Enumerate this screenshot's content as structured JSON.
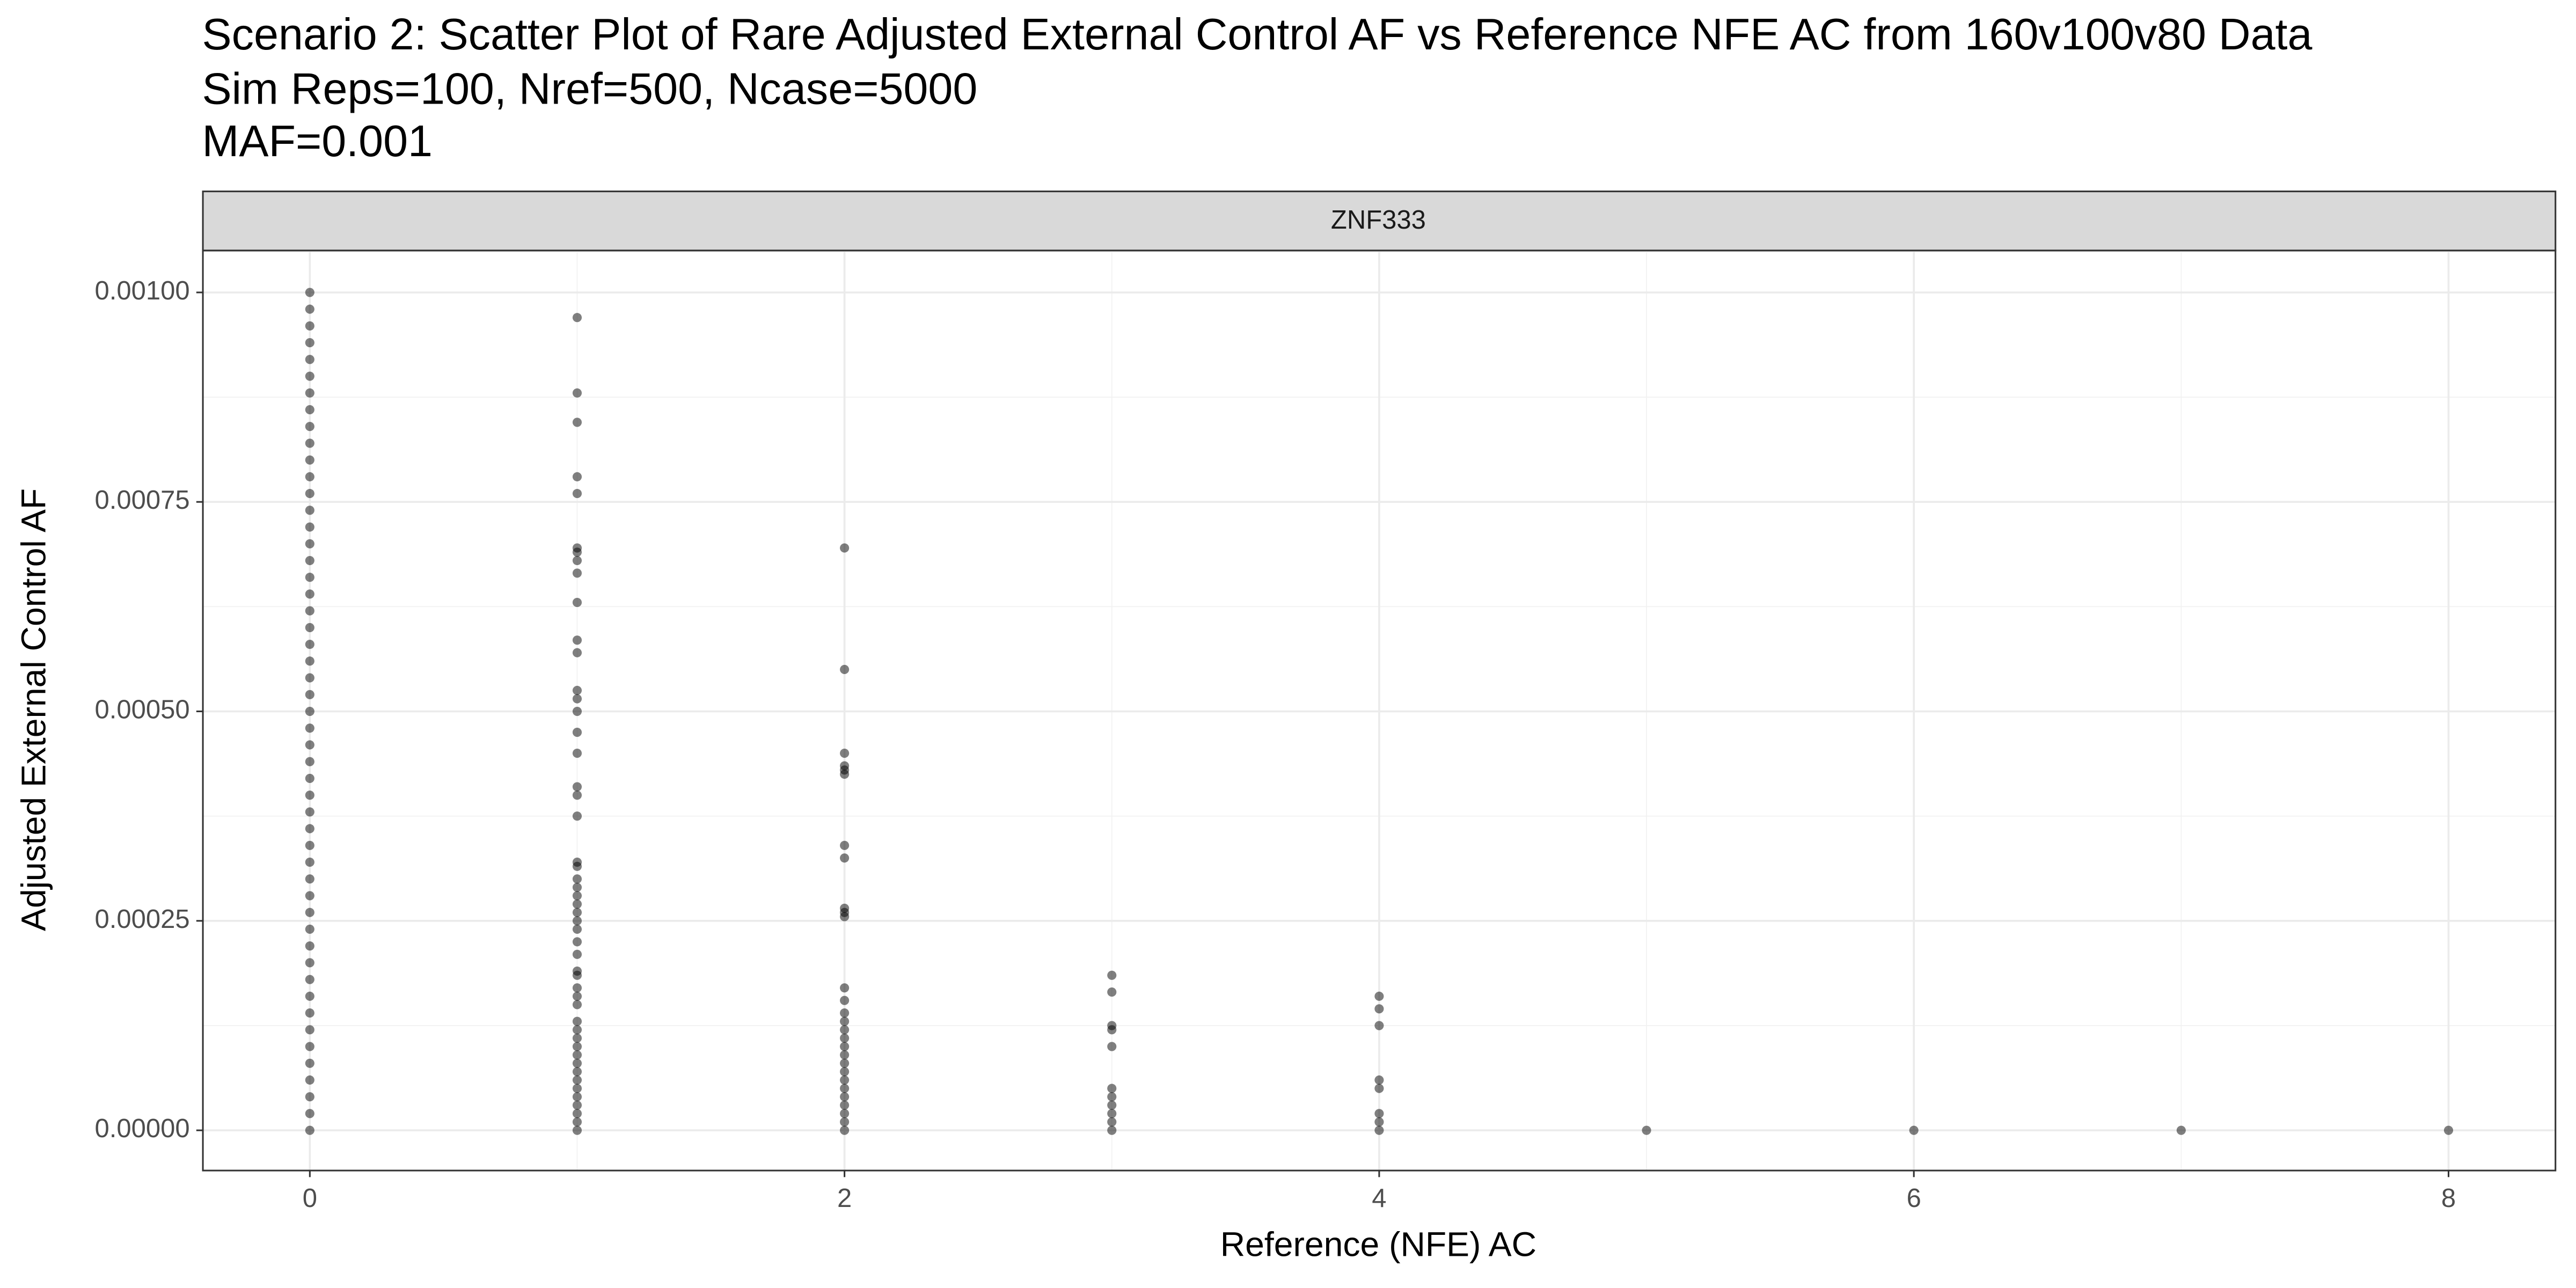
{
  "chart_data": {
    "type": "scatter",
    "title": "Scenario 2: Scatter Plot of Rare Adjusted External Control AF vs Reference NFE AC from 160v100v80 Data",
    "subtitle": [
      "Sim Reps=100, Nref=500, Ncase=5000",
      "MAF=0.001"
    ],
    "strip": "ZNF333",
    "x_label": "Reference (NFE) AC",
    "y_label": "Adjusted External Control AF",
    "xlim": [
      -0.4,
      8.4
    ],
    "ylim": [
      -4.8e-05,
      0.00105
    ],
    "xticks": [
      0,
      2,
      4,
      6,
      8
    ],
    "yticks": [
      {
        "value": 0,
        "label": "0.00000"
      },
      {
        "value": 0.00025,
        "label": "0.00025"
      },
      {
        "value": 0.0005,
        "label": "0.00050"
      },
      {
        "value": 0.00075,
        "label": "0.00075"
      },
      {
        "value": 0.001,
        "label": "0.00100"
      }
    ],
    "grid": true,
    "color": "#000000",
    "alpha": 0.5,
    "x": [
      0,
      0,
      0,
      0,
      0,
      0,
      0,
      0,
      0,
      0,
      0,
      0,
      0,
      0,
      0,
      0,
      0,
      0,
      0,
      0,
      0,
      0,
      0,
      0,
      0,
      0,
      0,
      0,
      0,
      0,
      0,
      0,
      0,
      0,
      0,
      0,
      0,
      0,
      0,
      0,
      0,
      0,
      0,
      0,
      0,
      0,
      0,
      0,
      0,
      0,
      0,
      1,
      1,
      1,
      1,
      1,
      1,
      1,
      1,
      1,
      1,
      1,
      1,
      1,
      1,
      1,
      1,
      1,
      1,
      1,
      1,
      1,
      1,
      1,
      1,
      1,
      1,
      1,
      1,
      1,
      1,
      1,
      1,
      1,
      1,
      1,
      1,
      1,
      1,
      1,
      1,
      1,
      1,
      1,
      1,
      1,
      1,
      1,
      1,
      1,
      1,
      2,
      2,
      2,
      2,
      2,
      2,
      2,
      2,
      2,
      2,
      2,
      2,
      2,
      2,
      2,
      2,
      2,
      2,
      2,
      2,
      2,
      2,
      2,
      2,
      2,
      2,
      2,
      2,
      3,
      3,
      3,
      3,
      3,
      3,
      3,
      3,
      3,
      3,
      3,
      4,
      4,
      4,
      4,
      4,
      4,
      4,
      4,
      5,
      6,
      7,
      8
    ],
    "values": [
      0,
      2e-05,
      4e-05,
      6e-05,
      8e-05,
      0.0001,
      0.00012,
      0.00014,
      0.00016,
      0.00018,
      0.0002,
      0.00022,
      0.00024,
      0.00026,
      0.00028,
      0.0003,
      0.00032,
      0.00034,
      0.00036,
      0.00038,
      0.0004,
      0.00042,
      0.00044,
      0.00046,
      0.00048,
      0.0005,
      0.00052,
      0.00054,
      0.00056,
      0.00058,
      0.0006,
      0.00062,
      0.00064,
      0.00066,
      0.00068,
      0.0007,
      0.00072,
      0.00074,
      0.00076,
      0.00078,
      0.0008,
      0.00082,
      0.00084,
      0.00086,
      0.00088,
      0.0009,
      0.00092,
      0.00094,
      0.00096,
      0.00098,
      0.001,
      0.00097,
      0.00088,
      0.000845,
      0.00078,
      0.00076,
      0.000695,
      0.00069,
      0.00068,
      0.000665,
      0.00063,
      0.000585,
      0.00057,
      0.000525,
      0.000515,
      0.0005,
      0.000475,
      0.00045,
      0.00041,
      0.0004,
      0.000375,
      0.00032,
      0.000315,
      0.0003,
      0.00029,
      0.00028,
      0.00027,
      0.00026,
      0.00025,
      0.00024,
      0.000225,
      0.00021,
      0.00019,
      0.000185,
      0.00017,
      0.00016,
      0.00015,
      0.00013,
      0.00012,
      0.00011,
      0.0001,
      9e-05,
      8e-05,
      7e-05,
      6e-05,
      5e-05,
      4e-05,
      3e-05,
      2e-05,
      1e-05,
      0,
      0.000695,
      0.00055,
      0.00045,
      0.000435,
      0.00043,
      0.000425,
      0.00034,
      0.000325,
      0.000265,
      0.00026,
      0.000255,
      0.00017,
      0.000155,
      0.00014,
      0.00013,
      0.00012,
      0.00011,
      0.0001,
      9e-05,
      8e-05,
      7e-05,
      6e-05,
      5e-05,
      4e-05,
      3e-05,
      2e-05,
      1e-05,
      0,
      0.000185,
      0.000165,
      0.000125,
      0.00012,
      0.0001,
      5e-05,
      4e-05,
      3e-05,
      2e-05,
      1e-05,
      0,
      0.00016,
      0.000145,
      0.000125,
      6e-05,
      5e-05,
      2e-05,
      1e-05,
      0,
      0,
      0,
      0,
      0
    ]
  }
}
